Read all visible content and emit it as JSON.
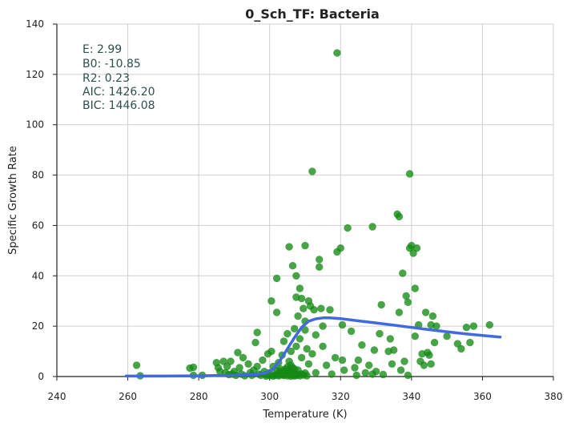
{
  "chart_data": {
    "type": "scatter",
    "title": "0_Sch_TF: Bacteria",
    "xlabel": "Temperature (K)",
    "ylabel": "Specific Growth Rate",
    "xlim": [
      240,
      380
    ],
    "ylim": [
      0,
      140
    ],
    "xticks": [
      "240",
      "260",
      "280",
      "300",
      "320",
      "340",
      "360",
      "380"
    ],
    "yticks": [
      "0",
      "20",
      "40",
      "60",
      "80",
      "100",
      "120",
      "140"
    ],
    "grid": true,
    "stats": [
      "E:  2.99",
      "B0:  -10.85",
      "R2:  0.23",
      "AIC: 1426.20",
      "BIC: 1446.08"
    ],
    "colors": {
      "points": "#138a13",
      "fit": "#4169e1",
      "stats_text": "#2f4f4f",
      "grid": "#d0d0d0"
    },
    "points": [
      [
        262.5,
        4.5
      ],
      [
        263.5,
        0.3
      ],
      [
        277.5,
        3.3
      ],
      [
        278.5,
        3.7
      ],
      [
        278.5,
        0.5
      ],
      [
        281,
        0.5
      ],
      [
        285,
        5.5
      ],
      [
        285.5,
        3.5
      ],
      [
        286,
        2.0
      ],
      [
        287,
        6.0
      ],
      [
        287.5,
        1.5
      ],
      [
        288,
        4.0
      ],
      [
        288.5,
        0.8
      ],
      [
        289,
        6.0
      ],
      [
        289.5,
        1.0
      ],
      [
        290,
        2.0
      ],
      [
        290.5,
        0.5
      ],
      [
        291,
        9.5
      ],
      [
        291.5,
        3.5
      ],
      [
        292,
        1.0
      ],
      [
        292.5,
        7.5
      ],
      [
        293,
        0.3
      ],
      [
        294,
        5.0
      ],
      [
        294.5,
        1.5
      ],
      [
        295,
        0.5
      ],
      [
        295.5,
        2.5
      ],
      [
        296,
        13.5
      ],
      [
        296.5,
        17.5
      ],
      [
        296.5,
        4.0
      ],
      [
        297,
        1.0
      ],
      [
        297.5,
        0.5
      ],
      [
        298,
        6.5
      ],
      [
        298.5,
        2.0
      ],
      [
        299,
        0.8
      ],
      [
        299.5,
        9.0
      ],
      [
        300,
        1.5
      ],
      [
        300.5,
        30.0
      ],
      [
        300.5,
        10.0
      ],
      [
        301,
        4.0
      ],
      [
        301.5,
        0.5
      ],
      [
        302,
        25.5
      ],
      [
        302,
        39.0
      ],
      [
        302.5,
        5.5
      ],
      [
        303,
        2.0
      ],
      [
        303.5,
        8.5
      ],
      [
        304,
        14.0
      ],
      [
        304,
        0.8
      ],
      [
        304.5,
        3.0
      ],
      [
        305,
        17.0
      ],
      [
        305.5,
        51.5
      ],
      [
        305.5,
        6.0
      ],
      [
        305.5,
        1.0
      ],
      [
        306,
        10.0
      ],
      [
        306.5,
        44.0
      ],
      [
        306.5,
        3.5
      ],
      [
        307,
        19.0
      ],
      [
        307,
        0.3
      ],
      [
        307.5,
        31.5
      ],
      [
        307.5,
        40.0
      ],
      [
        307.5,
        12.0
      ],
      [
        308,
        24.0
      ],
      [
        308,
        2.5
      ],
      [
        308.5,
        35.0
      ],
      [
        308.5,
        15.0
      ],
      [
        309,
        31.0
      ],
      [
        309,
        7.5
      ],
      [
        309,
        1.0
      ],
      [
        309.5,
        27.0
      ],
      [
        310,
        52.0
      ],
      [
        310,
        22.0
      ],
      [
        310,
        18.5
      ],
      [
        310.5,
        11.0
      ],
      [
        311,
        30.0
      ],
      [
        311,
        5.0
      ],
      [
        311.5,
        28.0
      ],
      [
        312,
        81.5
      ],
      [
        312,
        9.0
      ],
      [
        312.5,
        26.5
      ],
      [
        313,
        16.5
      ],
      [
        313,
        1.5
      ],
      [
        314,
        46.5
      ],
      [
        314,
        43.5
      ],
      [
        314.5,
        27.0
      ],
      [
        315,
        12.0
      ],
      [
        315,
        20.0
      ],
      [
        316,
        4.5
      ],
      [
        317,
        26.5
      ],
      [
        317.5,
        1.0
      ],
      [
        318.5,
        7.5
      ],
      [
        319,
        128.5
      ],
      [
        319,
        49.5
      ],
      [
        320,
        51.0
      ],
      [
        320.5,
        20.5
      ],
      [
        320.5,
        6.5
      ],
      [
        321,
        2.5
      ],
      [
        322,
        59.0
      ],
      [
        323,
        18.0
      ],
      [
        324,
        3.5
      ],
      [
        324.5,
        0.5
      ],
      [
        325,
        6.5
      ],
      [
        326,
        12.5
      ],
      [
        327,
        1.5
      ],
      [
        328,
        4.5
      ],
      [
        329,
        59.5
      ],
      [
        329,
        1.0
      ],
      [
        329.5,
        10.5
      ],
      [
        330,
        2.0
      ],
      [
        331,
        17.0
      ],
      [
        331.5,
        28.5
      ],
      [
        332,
        0.8
      ],
      [
        333.5,
        10.0
      ],
      [
        334,
        15.0
      ],
      [
        334.5,
        5.0
      ],
      [
        335,
        10.5
      ],
      [
        336,
        64.5
      ],
      [
        336.5,
        63.5
      ],
      [
        336.5,
        25.5
      ],
      [
        337,
        2.5
      ],
      [
        337.5,
        41.0
      ],
      [
        338,
        6.0
      ],
      [
        338.5,
        32.0
      ],
      [
        339,
        29.5
      ],
      [
        339,
        0.5
      ],
      [
        339.5,
        51.0
      ],
      [
        339.5,
        80.5
      ],
      [
        340,
        52.0
      ],
      [
        340.5,
        49.0
      ],
      [
        341,
        16.0
      ],
      [
        341,
        35.0
      ],
      [
        341.5,
        51.0
      ],
      [
        342,
        20.5
      ],
      [
        342.5,
        6.0
      ],
      [
        343,
        9.0
      ],
      [
        343.5,
        4.5
      ],
      [
        344,
        25.5
      ],
      [
        344.5,
        9.5
      ],
      [
        345,
        8.5
      ],
      [
        345.5,
        5.0
      ],
      [
        345.5,
        20.5
      ],
      [
        346,
        24.0
      ],
      [
        346.5,
        13.5
      ],
      [
        347,
        20.0
      ],
      [
        350,
        16.0
      ],
      [
        353,
        13.0
      ],
      [
        354,
        11.0
      ],
      [
        355.5,
        19.5
      ],
      [
        356.5,
        13.5
      ],
      [
        357.5,
        20.0
      ],
      [
        362,
        20.5
      ],
      [
        299,
        0.2
      ],
      [
        300,
        0.4
      ],
      [
        301,
        0.2
      ],
      [
        302,
        1.0
      ],
      [
        302.5,
        0.3
      ],
      [
        303,
        0.6
      ],
      [
        303.5,
        1.2
      ],
      [
        304,
        0.4
      ],
      [
        304.5,
        1.5
      ],
      [
        305,
        0.3
      ],
      [
        305,
        2.2
      ],
      [
        305.5,
        0.8
      ],
      [
        306,
        0.2
      ],
      [
        306,
        1.8
      ],
      [
        306.5,
        0.6
      ],
      [
        307,
        1.2
      ],
      [
        307.5,
        0.4
      ],
      [
        308,
        0.8
      ],
      [
        308.5,
        0.3
      ],
      [
        309.5,
        0.6
      ],
      [
        310,
        1.4
      ],
      [
        310.5,
        0.3
      ],
      [
        303,
        3.0
      ],
      [
        304,
        2.0
      ],
      [
        302,
        2.5
      ],
      [
        306,
        4.5
      ],
      [
        307,
        3.0
      ],
      [
        305,
        3.8
      ]
    ],
    "fit_curve": [
      [
        259.5,
        0.2
      ],
      [
        270,
        0.2
      ],
      [
        280,
        0.3
      ],
      [
        290,
        0.5
      ],
      [
        296,
        0.8
      ],
      [
        299,
        1.5
      ],
      [
        301,
        3.0
      ],
      [
        303,
        6.5
      ],
      [
        305,
        11.0
      ],
      [
        307,
        15.5
      ],
      [
        309,
        19.5
      ],
      [
        311,
        22.0
      ],
      [
        313,
        22.9
      ],
      [
        315,
        23.3
      ],
      [
        317,
        23.3
      ],
      [
        320,
        23.0
      ],
      [
        325,
        22.1
      ],
      [
        330,
        21.3
      ],
      [
        335,
        20.4
      ],
      [
        340,
        19.5
      ],
      [
        345,
        18.6
      ],
      [
        350,
        17.8
      ],
      [
        355,
        17.0
      ],
      [
        360,
        16.3
      ],
      [
        365,
        15.7
      ]
    ]
  }
}
